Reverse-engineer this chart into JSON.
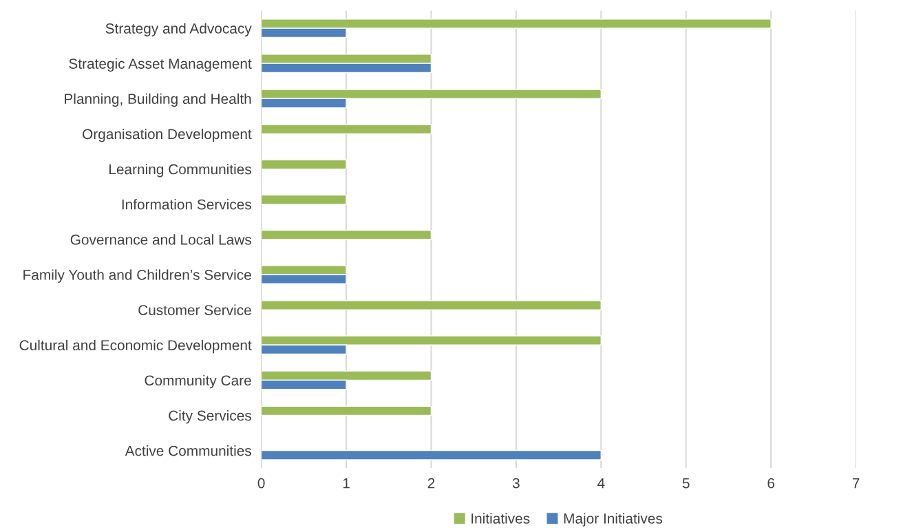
{
  "chart_data": {
    "type": "bar",
    "orientation": "horizontal",
    "categories": [
      "Strategy and Advocacy",
      "Strategic Asset Management",
      "Planning, Building and Health",
      "Organisation Development",
      "Learning Communities",
      "Information Services",
      "Governance and Local Laws",
      "Family Youth and Children’s Service",
      "Customer Service",
      "Cultural and Economic Development",
      "Community Care",
      "City Services",
      "Active Communities"
    ],
    "series": [
      {
        "name": "Initiatives",
        "color": "#9bbb59",
        "values": [
          6,
          2,
          4,
          2,
          1,
          1,
          2,
          1,
          4,
          4,
          2,
          2,
          null
        ]
      },
      {
        "name": "Major Initiatives",
        "color": "#4f81bd",
        "values": [
          1,
          2,
          1,
          null,
          null,
          null,
          null,
          1,
          null,
          1,
          1,
          null,
          4
        ]
      }
    ],
    "xlim": [
      0,
      7
    ],
    "xticks": [
      0,
      1,
      2,
      3,
      4,
      5,
      6,
      7
    ],
    "grid": "x",
    "legend": "bottom"
  }
}
